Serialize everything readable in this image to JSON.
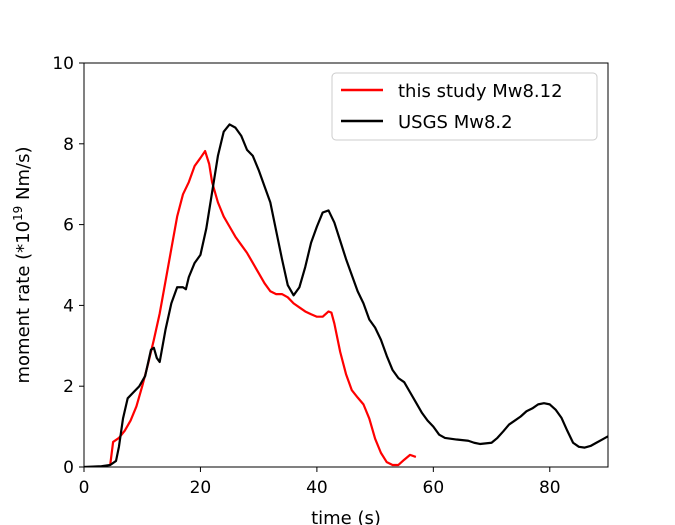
{
  "chart_data": {
    "type": "line",
    "xlabel": "time (s)",
    "ylabel_parts": [
      "moment rate (*10",
      "19",
      " Nm/s)"
    ],
    "xlim": [
      0,
      90
    ],
    "ylim": [
      0,
      10
    ],
    "xticks": [
      0,
      20,
      40,
      60,
      80
    ],
    "yticks": [
      0,
      2,
      4,
      6,
      8,
      10
    ],
    "grid": false,
    "legend_position": "top-right",
    "series": [
      {
        "name": "this study Mw8.12",
        "color": "#ff0000",
        "points": [
          [
            4.5,
            0.05
          ],
          [
            5.0,
            0.62
          ],
          [
            6.0,
            0.72
          ],
          [
            7.0,
            0.9
          ],
          [
            8.0,
            1.15
          ],
          [
            9.0,
            1.5
          ],
          [
            10.0,
            2.0
          ],
          [
            11.0,
            2.55
          ],
          [
            12.0,
            3.15
          ],
          [
            13.0,
            3.8
          ],
          [
            14.0,
            4.6
          ],
          [
            15.0,
            5.4
          ],
          [
            16.0,
            6.2
          ],
          [
            17.0,
            6.75
          ],
          [
            18.0,
            7.05
          ],
          [
            19.0,
            7.45
          ],
          [
            20.0,
            7.65
          ],
          [
            20.8,
            7.82
          ],
          [
            21.5,
            7.5
          ],
          [
            22.0,
            7.05
          ],
          [
            23.0,
            6.55
          ],
          [
            24.0,
            6.2
          ],
          [
            25.0,
            5.95
          ],
          [
            26.0,
            5.7
          ],
          [
            27.0,
            5.5
          ],
          [
            28.0,
            5.3
          ],
          [
            29.0,
            5.05
          ],
          [
            30.0,
            4.8
          ],
          [
            31.0,
            4.55
          ],
          [
            32.0,
            4.35
          ],
          [
            33.0,
            4.28
          ],
          [
            34.0,
            4.28
          ],
          [
            35.0,
            4.2
          ],
          [
            36.0,
            4.05
          ],
          [
            37.0,
            3.95
          ],
          [
            38.0,
            3.85
          ],
          [
            39.0,
            3.78
          ],
          [
            40.0,
            3.72
          ],
          [
            41.0,
            3.72
          ],
          [
            42.0,
            3.85
          ],
          [
            42.5,
            3.82
          ],
          [
            43.0,
            3.55
          ],
          [
            44.0,
            2.85
          ],
          [
            45.0,
            2.3
          ],
          [
            46.0,
            1.9
          ],
          [
            47.0,
            1.72
          ],
          [
            48.0,
            1.55
          ],
          [
            49.0,
            1.2
          ],
          [
            50.0,
            0.7
          ],
          [
            51.0,
            0.35
          ],
          [
            52.0,
            0.12
          ],
          [
            53.0,
            0.05
          ],
          [
            54.0,
            0.05
          ],
          [
            55.0,
            0.18
          ],
          [
            56.0,
            0.3
          ],
          [
            57.0,
            0.25
          ]
        ]
      },
      {
        "name": "USGS Mw8.2",
        "color": "#000000",
        "points": [
          [
            0.0,
            0.0
          ],
          [
            3.0,
            0.02
          ],
          [
            4.5,
            0.05
          ],
          [
            5.5,
            0.15
          ],
          [
            6.0,
            0.5
          ],
          [
            6.7,
            1.2
          ],
          [
            7.5,
            1.7
          ],
          [
            8.5,
            1.85
          ],
          [
            9.5,
            2.0
          ],
          [
            10.5,
            2.25
          ],
          [
            11.5,
            2.9
          ],
          [
            12.0,
            2.95
          ],
          [
            12.5,
            2.7
          ],
          [
            13.0,
            2.6
          ],
          [
            14.0,
            3.4
          ],
          [
            15.0,
            4.05
          ],
          [
            16.0,
            4.45
          ],
          [
            17.0,
            4.45
          ],
          [
            17.5,
            4.4
          ],
          [
            18.0,
            4.7
          ],
          [
            19.0,
            5.05
          ],
          [
            20.0,
            5.25
          ],
          [
            21.0,
            5.9
          ],
          [
            22.0,
            6.8
          ],
          [
            23.0,
            7.7
          ],
          [
            24.0,
            8.3
          ],
          [
            25.0,
            8.48
          ],
          [
            26.0,
            8.4
          ],
          [
            27.0,
            8.2
          ],
          [
            28.0,
            7.85
          ],
          [
            29.0,
            7.7
          ],
          [
            30.0,
            7.35
          ],
          [
            31.0,
            6.95
          ],
          [
            32.0,
            6.55
          ],
          [
            33.0,
            5.85
          ],
          [
            34.0,
            5.15
          ],
          [
            35.0,
            4.5
          ],
          [
            36.0,
            4.25
          ],
          [
            37.0,
            4.45
          ],
          [
            38.0,
            4.95
          ],
          [
            39.0,
            5.55
          ],
          [
            40.0,
            5.95
          ],
          [
            41.0,
            6.3
          ],
          [
            42.0,
            6.35
          ],
          [
            43.0,
            6.05
          ],
          [
            44.0,
            5.6
          ],
          [
            45.0,
            5.15
          ],
          [
            46.0,
            4.75
          ],
          [
            47.0,
            4.35
          ],
          [
            48.0,
            4.05
          ],
          [
            49.0,
            3.65
          ],
          [
            50.0,
            3.45
          ],
          [
            51.0,
            3.15
          ],
          [
            52.0,
            2.75
          ],
          [
            53.0,
            2.4
          ],
          [
            54.0,
            2.2
          ],
          [
            55.0,
            2.1
          ],
          [
            56.0,
            1.85
          ],
          [
            57.0,
            1.6
          ],
          [
            58.0,
            1.35
          ],
          [
            59.0,
            1.15
          ],
          [
            60.0,
            1.0
          ],
          [
            61.0,
            0.8
          ],
          [
            62.0,
            0.72
          ],
          [
            64.0,
            0.68
          ],
          [
            66.0,
            0.65
          ],
          [
            67.0,
            0.6
          ],
          [
            68.0,
            0.57
          ],
          [
            70.0,
            0.6
          ],
          [
            71.0,
            0.72
          ],
          [
            72.0,
            0.88
          ],
          [
            73.0,
            1.05
          ],
          [
            74.0,
            1.15
          ],
          [
            75.0,
            1.25
          ],
          [
            76.0,
            1.38
          ],
          [
            77.0,
            1.45
          ],
          [
            78.0,
            1.55
          ],
          [
            79.0,
            1.58
          ],
          [
            80.0,
            1.55
          ],
          [
            81.0,
            1.42
          ],
          [
            82.0,
            1.22
          ],
          [
            83.0,
            0.9
          ],
          [
            84.0,
            0.6
          ],
          [
            85.0,
            0.5
          ],
          [
            86.0,
            0.48
          ],
          [
            87.0,
            0.52
          ],
          [
            88.0,
            0.6
          ],
          [
            89.0,
            0.68
          ],
          [
            90.0,
            0.76
          ]
        ]
      }
    ]
  }
}
